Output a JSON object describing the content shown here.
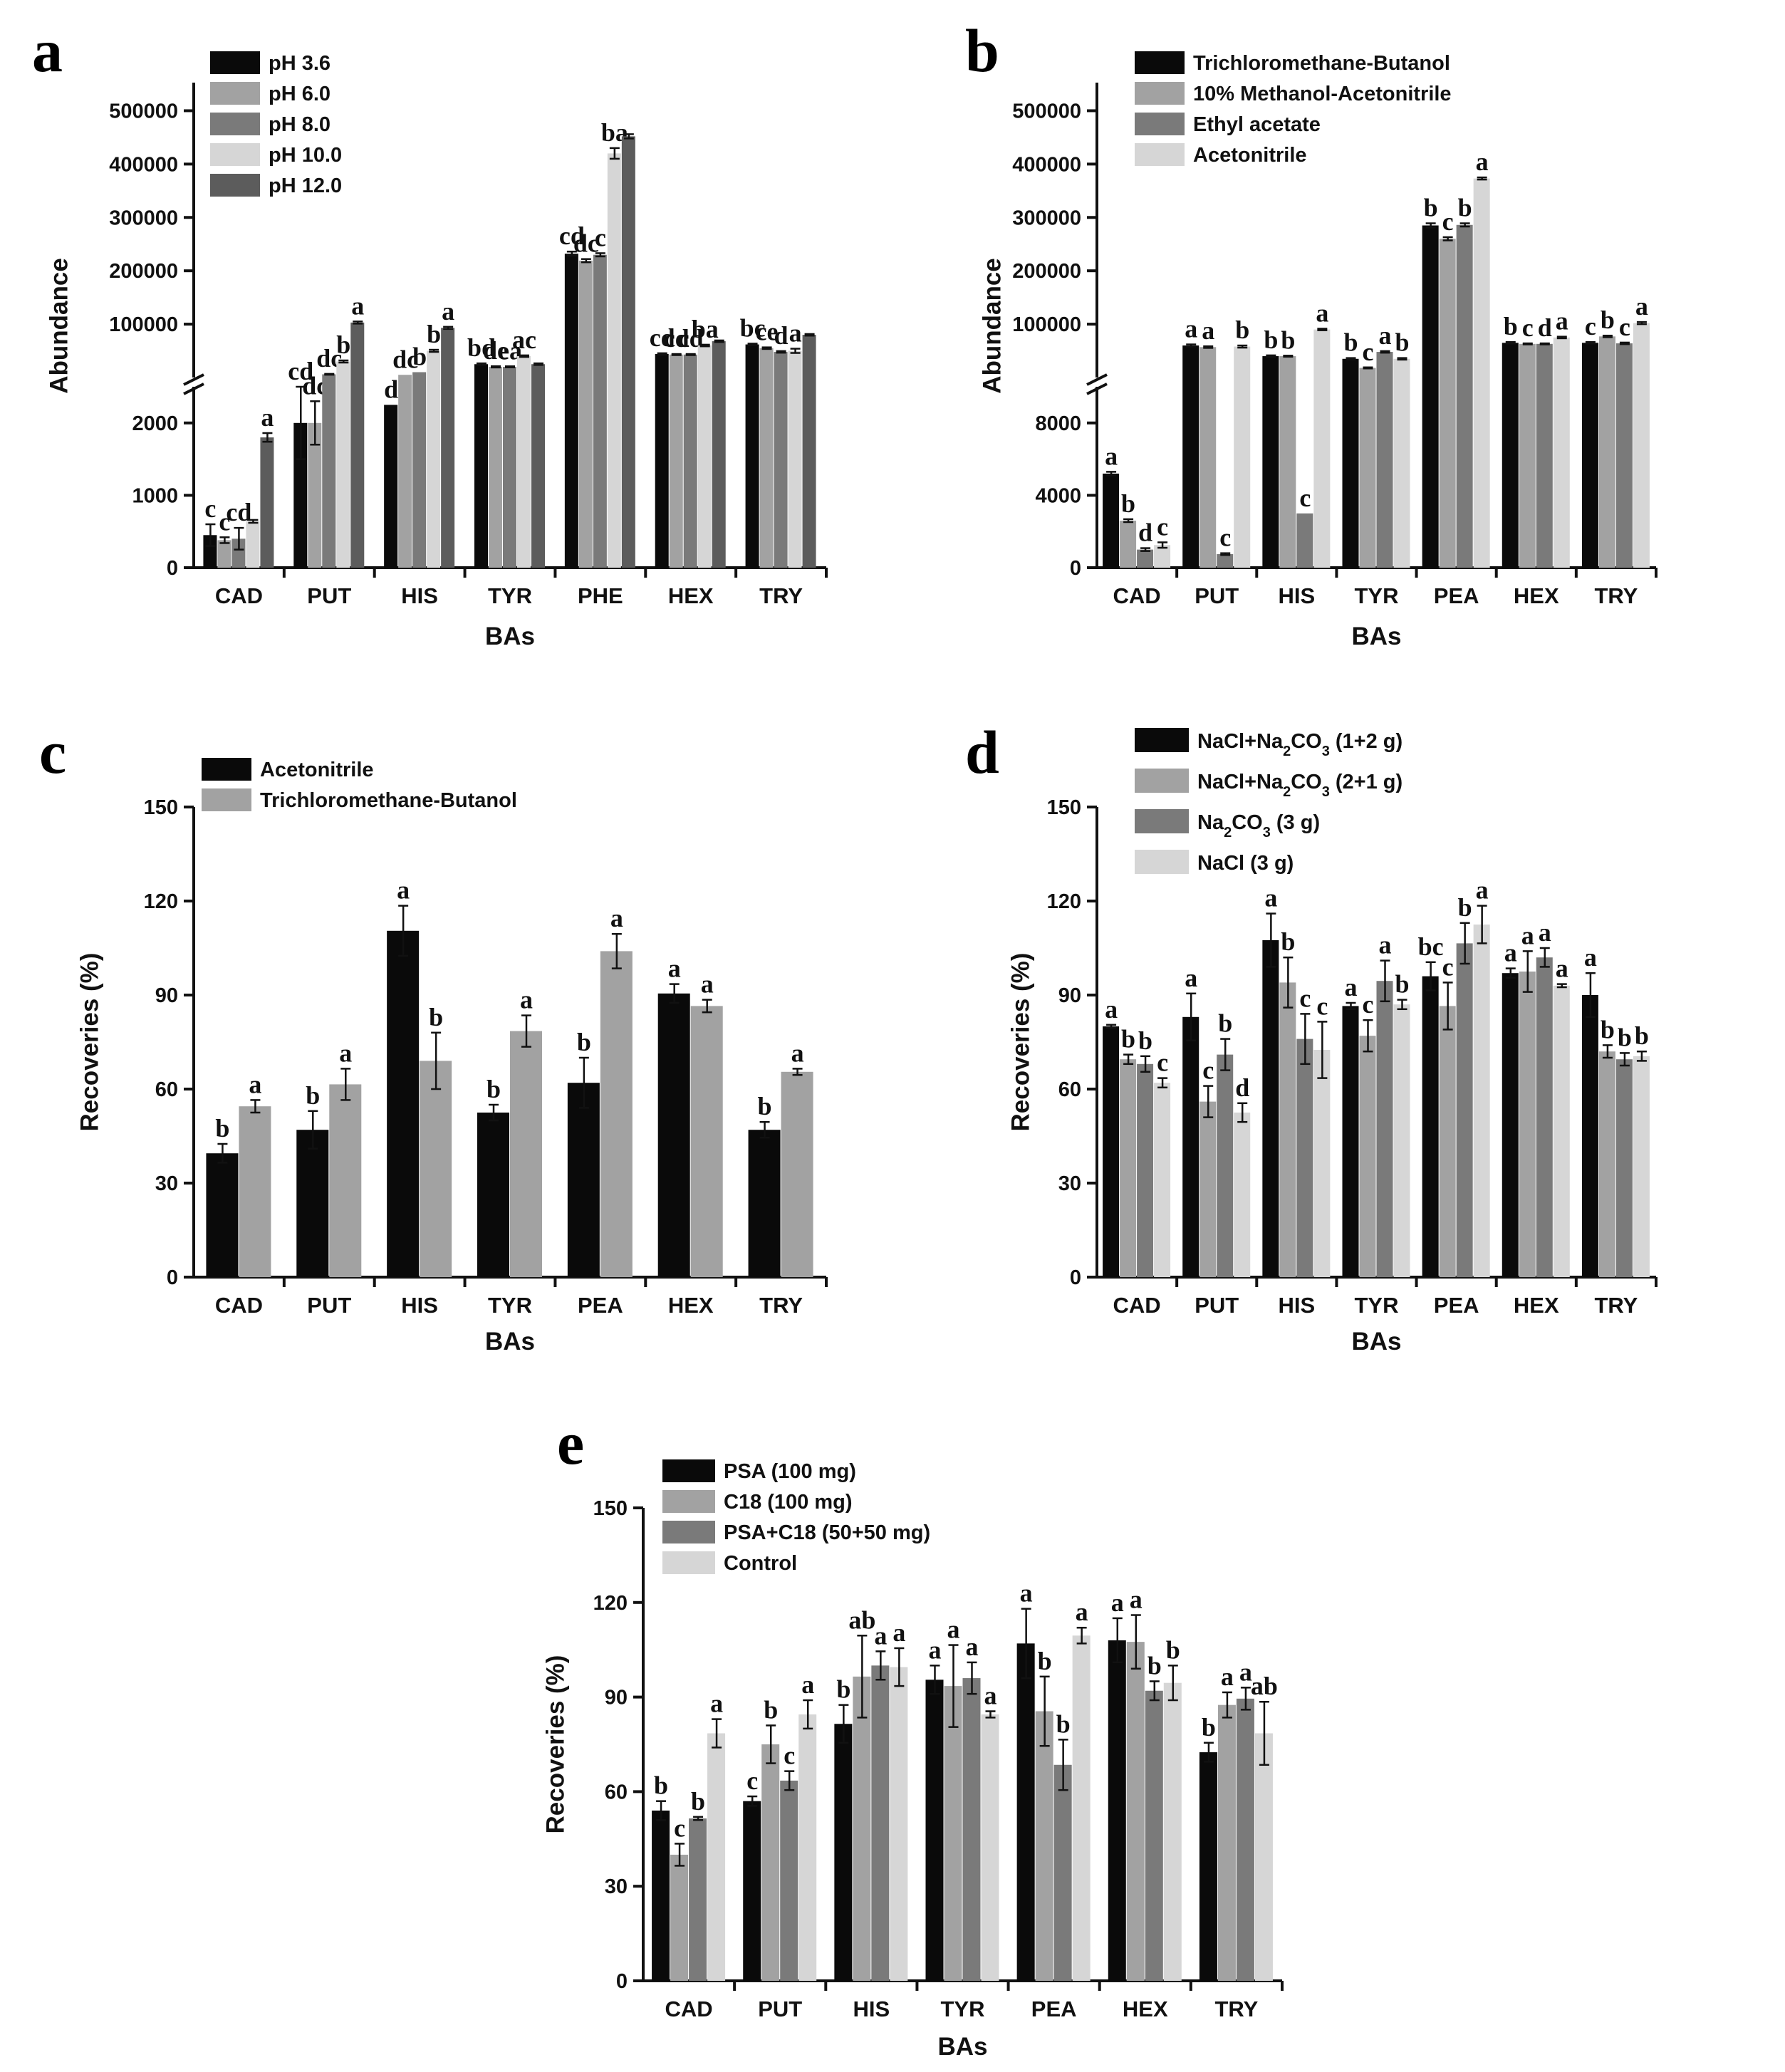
{
  "colors": {
    "black": "#0a0a0a",
    "gray_mid": "#a2a2a2",
    "gray_dark": "#7a7a7a",
    "gray_light": "#d6d6d6",
    "gray_darker": "#5c5c5c"
  },
  "chart_data": [
    {
      "panel": "a",
      "type": "bar",
      "title": "",
      "xlabel": "BAs",
      "ylabel": "Abundance",
      "broken_axis": true,
      "lower_ylim": [
        0,
        2500
      ],
      "upper_ylim": [
        0,
        550000
      ],
      "lower_ticks": [
        0,
        1000,
        2000
      ],
      "upper_ticks": [
        100000,
        200000,
        300000,
        400000,
        500000
      ],
      "categories": [
        "CAD",
        "PUT",
        "HIS",
        "TYR",
        "PHE",
        "HEX",
        "TRY"
      ],
      "series": [
        {
          "name": "pH 3.6",
          "color": "#0a0a0a",
          "values": [
            450,
            2000,
            2250,
            25000,
            232000,
            44000,
            62000
          ],
          "errors": [
            150,
            500,
            0,
            1500,
            4000,
            1500,
            1500
          ],
          "sig": [
            "c",
            "cd",
            "d",
            "bd",
            "cd",
            "cd",
            "bc"
          ]
        },
        {
          "name": "pH 6.0",
          "color": "#a2a2a2",
          "values": [
            380,
            2000,
            5000,
            20000,
            219000,
            43000,
            55000
          ],
          "errors": [
            40,
            300,
            0,
            1200,
            3000,
            1000,
            1500
          ],
          "sig": [
            "c",
            "dc",
            "dc",
            "de",
            "dc",
            "cd",
            "ce"
          ]
        },
        {
          "name": "pH 8.0",
          "color": "#7a7a7a",
          "values": [
            400,
            6000,
            10000,
            20000,
            230000,
            43000,
            48000
          ],
          "errors": [
            150,
            800,
            0,
            1000,
            3000,
            1000,
            1500
          ],
          "sig": [
            "cd",
            "dc",
            "b",
            "ea",
            "c",
            "cd",
            "d"
          ]
        },
        {
          "name": "pH 10.0",
          "color": "#d6d6d6",
          "values": [
            640,
            30000,
            50000,
            40000,
            420000,
            60000,
            50000
          ],
          "errors": [
            20,
            2000,
            2000,
            1500,
            10000,
            1500,
            4000
          ],
          "sig": [
            "",
            "b",
            "b",
            "ac",
            "ba",
            "ba",
            "a"
          ]
        },
        {
          "name": "pH 12.0",
          "color": "#5c5c5c",
          "values": [
            1800,
            103000,
            93000,
            25000,
            452000,
            68000,
            80000
          ],
          "errors": [
            60,
            2000,
            2000,
            1500,
            4000,
            1500,
            1500
          ],
          "sig": [
            "a",
            "a",
            "a",
            "",
            "",
            "",
            ""
          ]
        }
      ]
    },
    {
      "panel": "b",
      "type": "bar",
      "title": "",
      "xlabel": "BAs",
      "ylabel": "Abundance",
      "broken_axis": true,
      "lower_ylim": [
        0,
        10000
      ],
      "upper_ylim": [
        0,
        550000
      ],
      "lower_ticks": [
        0,
        4000,
        8000
      ],
      "upper_ticks": [
        100000,
        200000,
        300000,
        400000,
        500000
      ],
      "categories": [
        "CAD",
        "PUT",
        "HIS",
        "TYR",
        "PEA",
        "HEX",
        "TRY"
      ],
      "series": [
        {
          "name": "Trichloromethane-Butanol",
          "color": "#0a0a0a",
          "values": [
            5200,
            60000,
            40000,
            35000,
            285000,
            65000,
            65000
          ],
          "errors": [
            100,
            2000,
            1500,
            1500,
            4000,
            1500,
            1500
          ],
          "sig": [
            "a",
            "a",
            "b",
            "b",
            "b",
            "b",
            "c"
          ]
        },
        {
          "name": "10% Methanol-Acetonitrile",
          "color": "#a2a2a2",
          "values": [
            2600,
            57000,
            40000,
            18000,
            260000,
            63000,
            77000
          ],
          "errors": [
            80,
            1500,
            1000,
            1000,
            3000,
            1000,
            1500
          ],
          "sig": [
            "b",
            "a",
            "b",
            "c",
            "c",
            "c",
            "b"
          ]
        },
        {
          "name": "Ethyl acetate",
          "color": "#7a7a7a",
          "values": [
            1000,
            750,
            3000,
            48000,
            286000,
            63000,
            64000
          ],
          "errors": [
            80,
            50,
            0,
            1500,
            3000,
            1000,
            1500
          ],
          "sig": [
            "d",
            "c",
            "c",
            "a",
            "b",
            "d",
            "c"
          ]
        },
        {
          "name": "Acetonitrile",
          "color": "#d6d6d6",
          "values": [
            1250,
            58000,
            90000,
            35000,
            373000,
            75000,
            102000
          ],
          "errors": [
            150,
            2000,
            1500,
            1500,
            2000,
            1500,
            2000
          ],
          "sig": [
            "c",
            "b",
            "a",
            "b",
            "a",
            "a",
            "a"
          ]
        }
      ]
    },
    {
      "panel": "c",
      "type": "bar",
      "title": "",
      "xlabel": "BAs",
      "ylabel": "Recoveries (%)",
      "ylim": [
        0,
        150
      ],
      "ticks": [
        0,
        30,
        60,
        90,
        120,
        150
      ],
      "categories": [
        "CAD",
        "PUT",
        "HIS",
        "TYR",
        "PEA",
        "HEX",
        "TRY"
      ],
      "series": [
        {
          "name": "Acetonitrile",
          "color": "#0a0a0a",
          "values": [
            39.5,
            47,
            110.5,
            52.5,
            62,
            90.5,
            47
          ],
          "errors": [
            3,
            6,
            8,
            2.5,
            8,
            3,
            2.5
          ],
          "sig": [
            "b",
            "b",
            "a",
            "b",
            "b",
            "a",
            "b"
          ]
        },
        {
          "name": "Trichloromethane-Butanol",
          "color": "#a2a2a2",
          "values": [
            54.5,
            61.5,
            69,
            78.5,
            104,
            86.5,
            65.5
          ],
          "errors": [
            2,
            5,
            9,
            5,
            5.5,
            2,
            1
          ],
          "sig": [
            "a",
            "a",
            "b",
            "a",
            "a",
            "a",
            "a"
          ]
        }
      ]
    },
    {
      "panel": "d",
      "type": "bar",
      "title": "",
      "xlabel": "BAs",
      "ylabel": "Recoveries (%)",
      "ylim": [
        0,
        150
      ],
      "ticks": [
        0,
        30,
        60,
        90,
        120,
        150
      ],
      "categories": [
        "CAD",
        "PUT",
        "HIS",
        "TYR",
        "PEA",
        "HEX",
        "TRY"
      ],
      "series": [
        {
          "name": "NaCl+Na2CO3 (1+2 g)",
          "color": "#0a0a0a",
          "values": [
            80,
            83,
            107.5,
            86.5,
            96,
            97,
            90
          ],
          "errors": [
            0.5,
            7.5,
            8.5,
            1,
            4.5,
            1.5,
            7
          ],
          "sig": [
            "a",
            "a",
            "a",
            "a",
            "bc",
            "a",
            "a"
          ]
        },
        {
          "name": "NaCl+Na2CO3 (2+1 g)",
          "color": "#a2a2a2",
          "values": [
            69.5,
            56,
            94,
            77,
            86.5,
            97.5,
            72
          ],
          "errors": [
            1.5,
            5,
            8,
            5,
            7.5,
            6.5,
            2
          ],
          "sig": [
            "b",
            "c",
            "b",
            "c",
            "c",
            "a",
            "b"
          ]
        },
        {
          "name": "Na2CO3 (3 g)",
          "color": "#7a7a7a",
          "values": [
            68,
            71,
            76,
            94.5,
            106.5,
            102,
            69.5
          ],
          "errors": [
            2.5,
            5,
            8,
            6.5,
            6.5,
            3,
            2
          ],
          "sig": [
            "b",
            "b",
            "c",
            "a",
            "b",
            "a",
            "b"
          ]
        },
        {
          "name": "NaCl (3 g)",
          "color": "#d6d6d6",
          "values": [
            62,
            52.5,
            72.5,
            87,
            112.5,
            93,
            70.5
          ],
          "errors": [
            1.5,
            3,
            9,
            1.5,
            6,
            0.5,
            1.5
          ],
          "sig": [
            "c",
            "d",
            "c",
            "b",
            "a",
            "a",
            "b"
          ]
        }
      ]
    },
    {
      "panel": "e",
      "type": "bar",
      "title": "",
      "xlabel": "BAs",
      "ylabel": "Recoveries (%)",
      "ylim": [
        0,
        150
      ],
      "ticks": [
        0,
        30,
        60,
        90,
        120,
        150
      ],
      "categories": [
        "CAD",
        "PUT",
        "HIS",
        "TYR",
        "PEA",
        "HEX",
        "TRY"
      ],
      "series": [
        {
          "name": "PSA (100 mg)",
          "color": "#0a0a0a",
          "values": [
            54,
            57,
            81.5,
            95.5,
            107,
            108,
            72.5
          ],
          "errors": [
            3,
            1.5,
            6,
            4.5,
            11,
            7,
            3
          ],
          "sig": [
            "b",
            "c",
            "b",
            "a",
            "a",
            "a",
            "b"
          ]
        },
        {
          "name": "C18  (100 mg)",
          "color": "#a2a2a2",
          "values": [
            40,
            75,
            96.5,
            93.5,
            85.5,
            107.5,
            87.5
          ],
          "errors": [
            3.5,
            6,
            13,
            13,
            11,
            8.5,
            4
          ],
          "sig": [
            "c",
            "b",
            "ab",
            "a",
            "b",
            "a",
            "a"
          ]
        },
        {
          "name": "PSA+C18 (50+50 mg)",
          "color": "#7a7a7a",
          "values": [
            51.5,
            63.5,
            100,
            96,
            68.5,
            92,
            89.5
          ],
          "errors": [
            0.5,
            3,
            4.5,
            5,
            8,
            3,
            3.5
          ],
          "sig": [
            "b",
            "c",
            "a",
            "a",
            "b",
            "b",
            "a"
          ]
        },
        {
          "name": "Control",
          "color": "#d6d6d6",
          "values": [
            78.5,
            84.5,
            99.5,
            84.5,
            109.5,
            94.5,
            78.5
          ],
          "errors": [
            4.5,
            4.5,
            6,
            1,
            2.5,
            5.5,
            10
          ],
          "sig": [
            "a",
            "a",
            "a",
            "a",
            "a",
            "b",
            "ab"
          ]
        }
      ]
    }
  ]
}
